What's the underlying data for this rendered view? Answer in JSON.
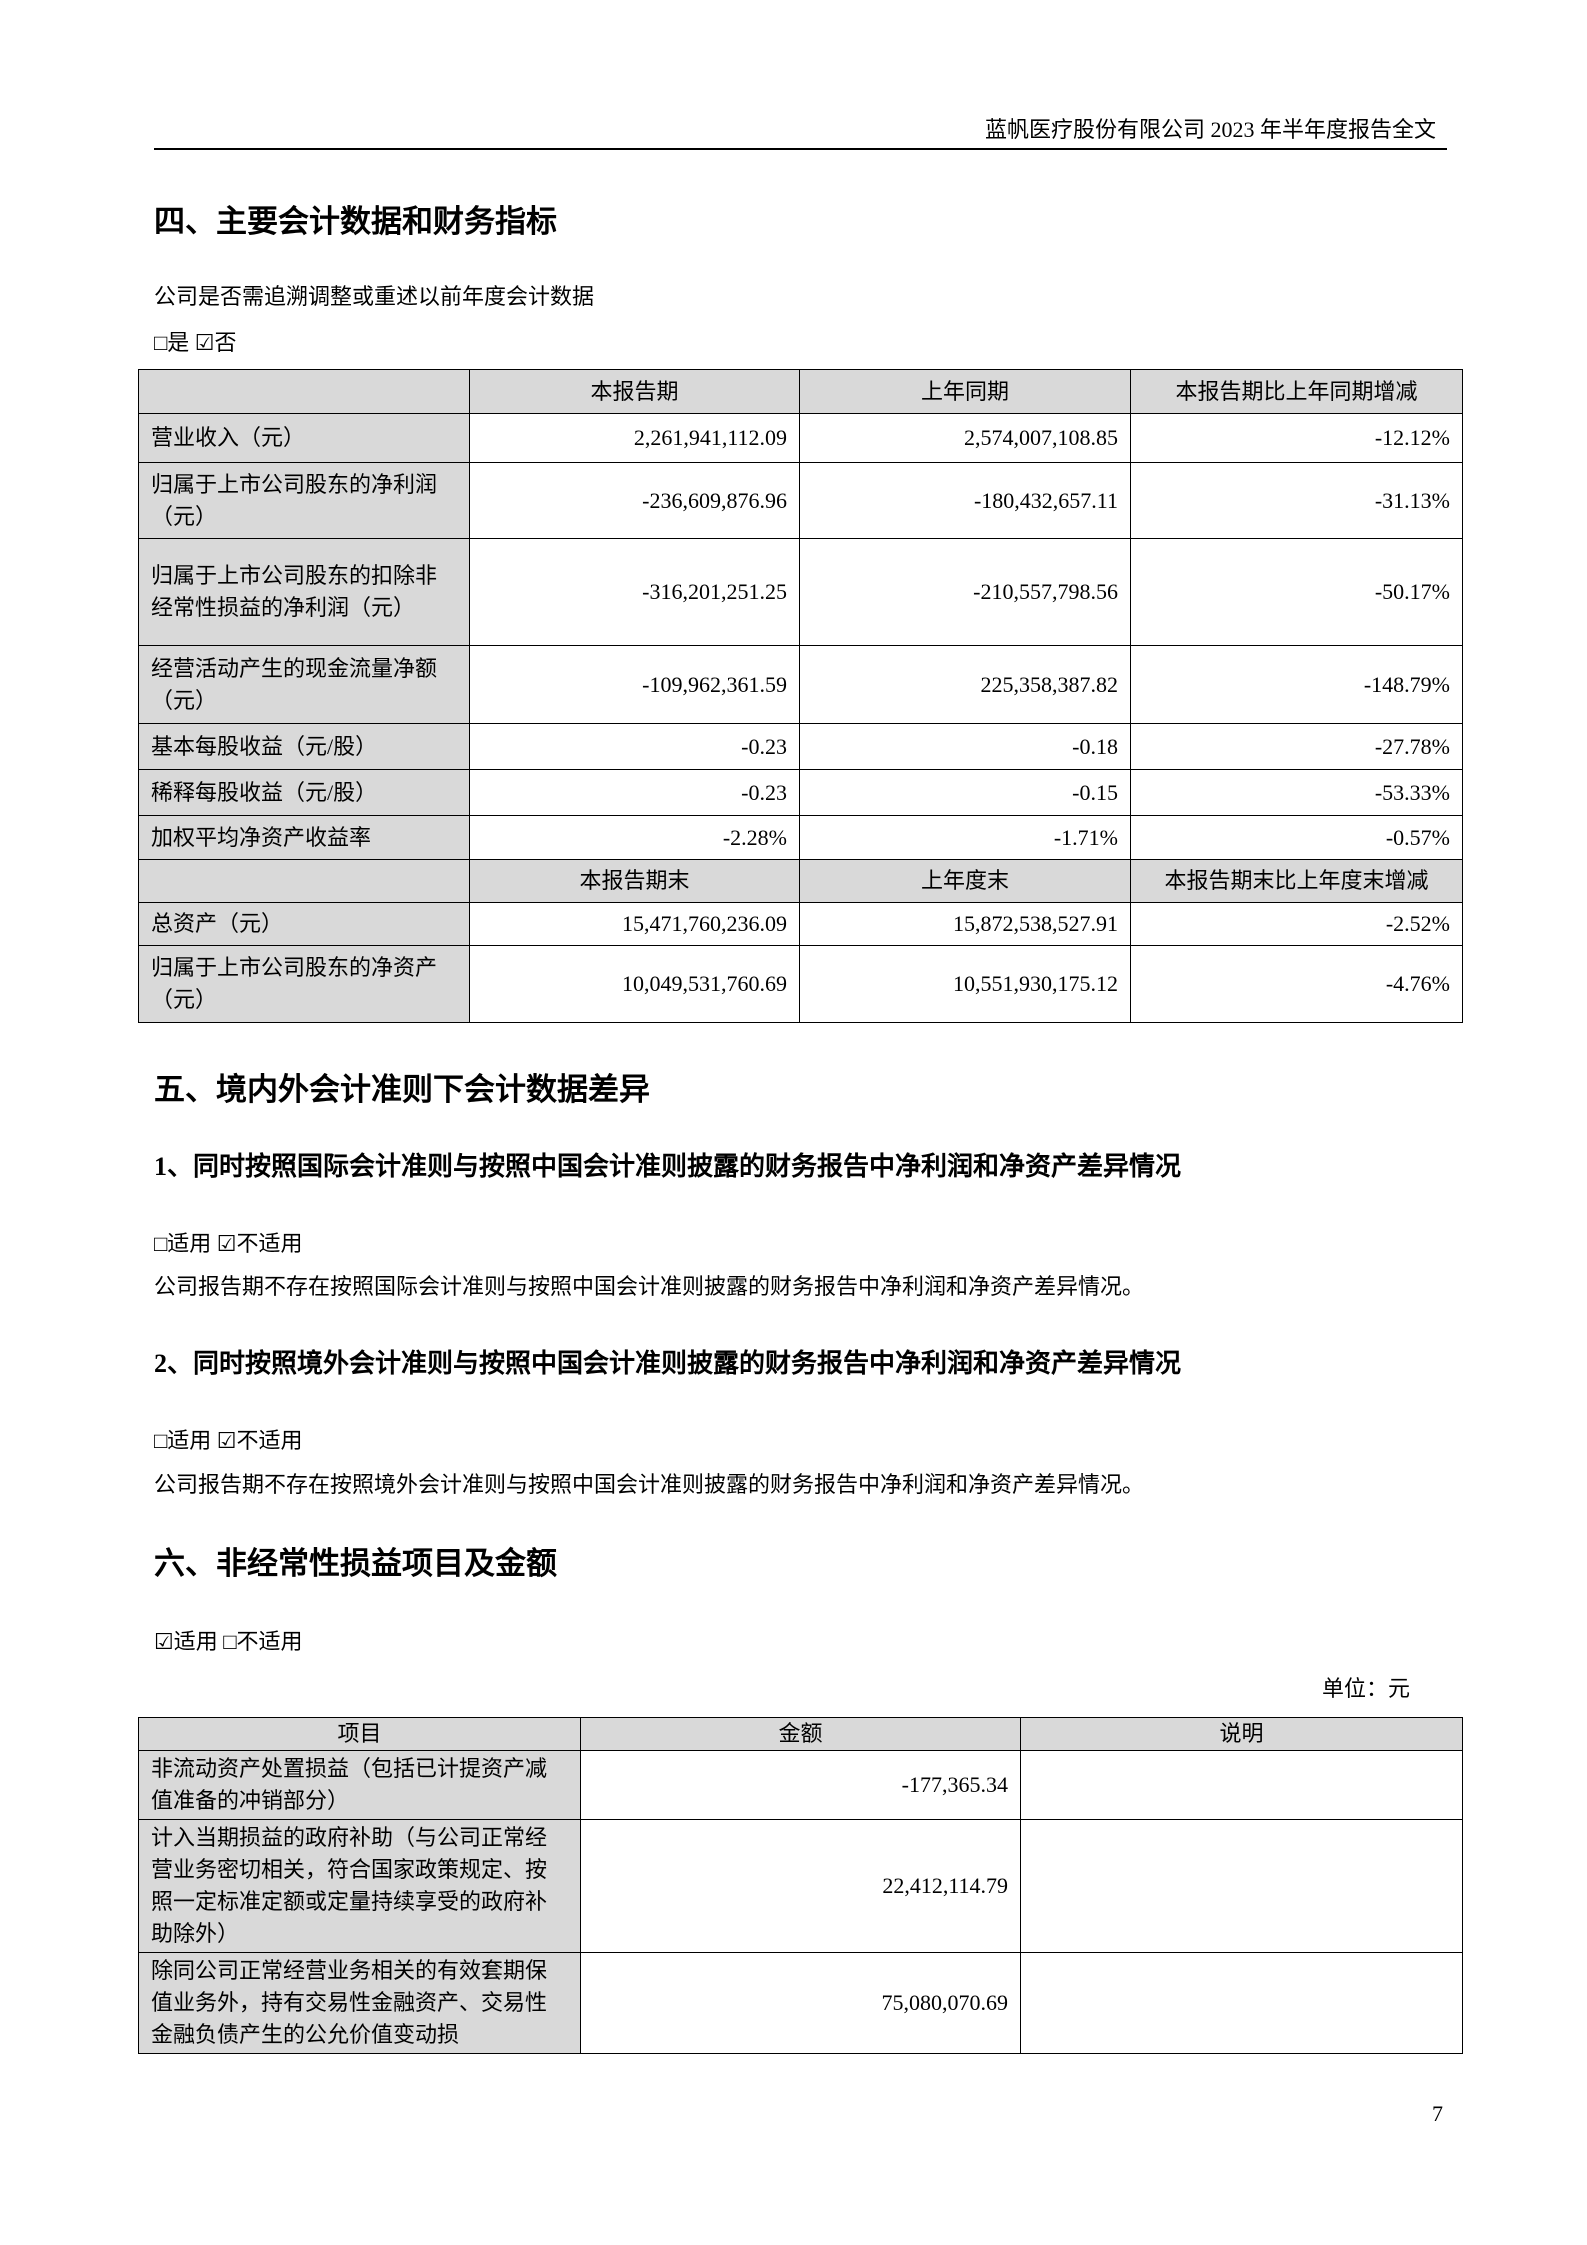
{
  "header": {
    "title": "蓝帆医疗股份有限公司 2023 年半年度报告全文"
  },
  "section4": {
    "title": "四、主要会计数据和财务指标",
    "question": "公司是否需追溯调整或重述以前年度会计数据",
    "options": "□是 ☑否",
    "table": {
      "header1": [
        "",
        "本报告期",
        "上年同期",
        "本报告期比上年同期增减"
      ],
      "rows1": [
        [
          "营业收入（元）",
          "2,261,941,112.09",
          "2,574,007,108.85",
          "-12.12%"
        ],
        [
          "归属于上市公司股东的净利润（元）",
          "-236,609,876.96",
          "-180,432,657.11",
          "-31.13%"
        ],
        [
          "归属于上市公司股东的扣除非经常性损益的净利润（元）",
          "-316,201,251.25",
          "-210,557,798.56",
          "-50.17%"
        ],
        [
          "经营活动产生的现金流量净额（元）",
          "-109,962,361.59",
          "225,358,387.82",
          "-148.79%"
        ],
        [
          "基本每股收益（元/股）",
          "-0.23",
          "-0.18",
          "-27.78%"
        ],
        [
          "稀释每股收益（元/股）",
          "-0.23",
          "-0.15",
          "-53.33%"
        ],
        [
          "加权平均净资产收益率",
          "-2.28%",
          "-1.71%",
          "-0.57%"
        ]
      ],
      "header2": [
        "",
        "本报告期末",
        "上年度末",
        "本报告期末比上年度末增减"
      ],
      "rows2": [
        [
          "总资产（元）",
          "15,471,760,236.09",
          "15,872,538,527.91",
          "-2.52%"
        ],
        [
          "归属于上市公司股东的净资产（元）",
          "10,049,531,760.69",
          "10,551,930,175.12",
          "-4.76%"
        ]
      ]
    }
  },
  "section5": {
    "title": "五、境内外会计准则下会计数据差异",
    "sub1": {
      "title": "1、同时按照国际会计准则与按照中国会计准则披露的财务报告中净利润和净资产差异情况",
      "options": "□适用 ☑不适用",
      "text": "公司报告期不存在按照国际会计准则与按照中国会计准则披露的财务报告中净利润和净资产差异情况。"
    },
    "sub2": {
      "title": "2、同时按照境外会计准则与按照中国会计准则披露的财务报告中净利润和净资产差异情况",
      "options": "□适用 ☑不适用",
      "text": "公司报告期不存在按照境外会计准则与按照中国会计准则披露的财务报告中净利润和净资产差异情况。"
    }
  },
  "section6": {
    "title": "六、非经常性损益项目及金额",
    "options": "☑适用 □不适用",
    "unit": "单位：元",
    "table": {
      "header": [
        "项目",
        "金额",
        "说明"
      ],
      "rows": [
        [
          "非流动资产处置损益（包括已计提资产减值准备的冲销部分）",
          "-177,365.34",
          ""
        ],
        [
          "计入当期损益的政府补助（与公司正常经营业务密切相关，符合国家政策规定、按照一定标准定额或定量持续享受的政府补助除外）",
          "22,412,114.79",
          ""
        ],
        [
          "除同公司正常经营业务相关的有效套期保值业务外，持有交易性金融资产、交易性金融负债产生的公允价值变动损",
          "75,080,070.69",
          ""
        ]
      ]
    }
  },
  "footer": {
    "page_number": "7"
  }
}
